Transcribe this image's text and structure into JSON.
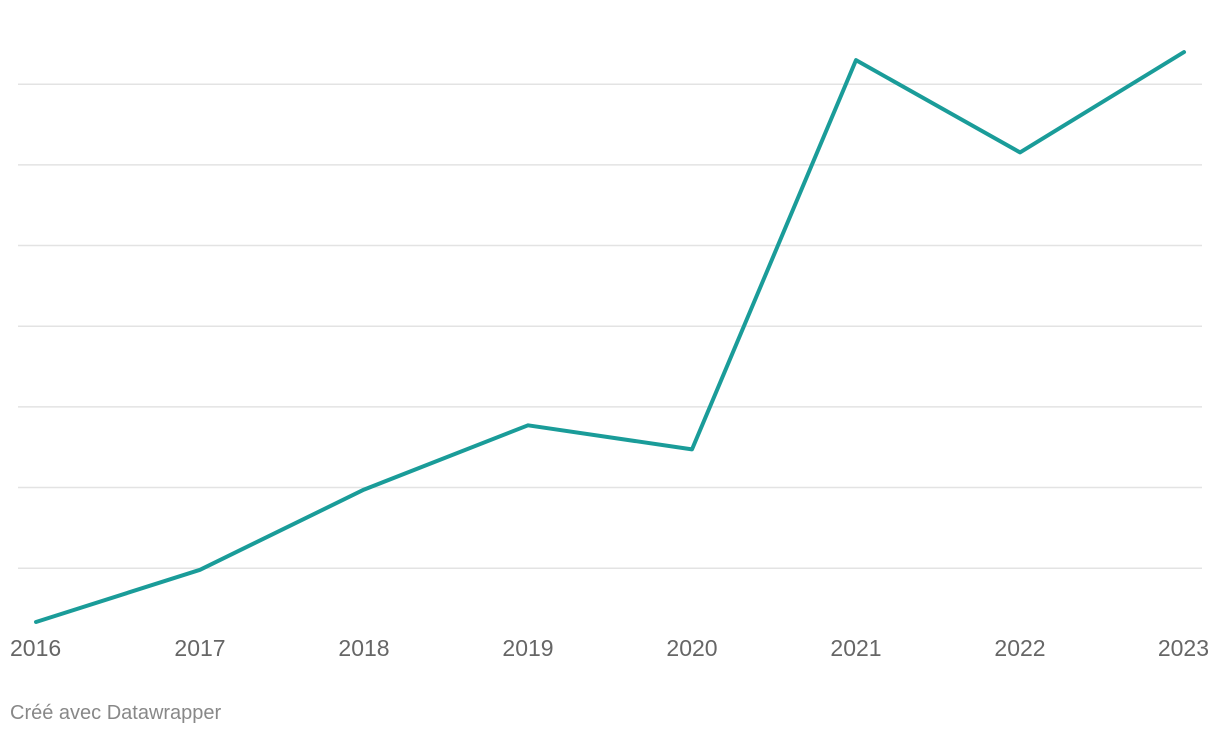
{
  "chart_data": {
    "type": "line",
    "x": [
      "2016",
      "2017",
      "2018",
      "2019",
      "2020",
      "2021",
      "2022",
      "2023"
    ],
    "series": [
      {
        "values": [
          0,
          13,
          33,
          49,
          43,
          140,
          117,
          142
        ]
      }
    ],
    "ylim": [
      0,
      150
    ],
    "ygrid": [
      13.4,
      33.5,
      53.6,
      73.7,
      93.8,
      113.9,
      134
    ],
    "grid": true,
    "y_ticks_shown": false,
    "line_color": "#1a9c99",
    "grid_color": "#e3e3e3"
  },
  "footer": {
    "credit": "Créé avec Datawrapper"
  }
}
